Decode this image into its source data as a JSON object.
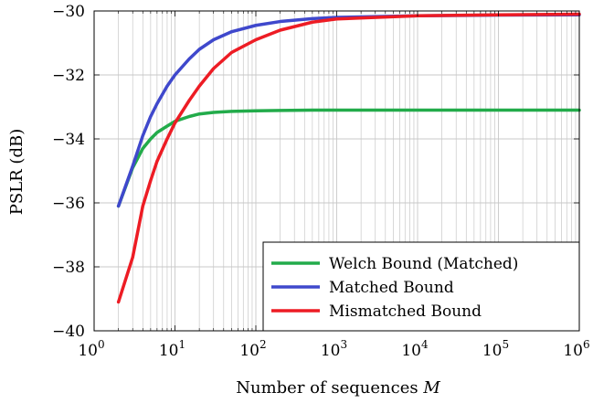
{
  "chart_data": {
    "type": "line",
    "title": "",
    "xlabel": "Number of sequences ",
    "xlabel_var": "M",
    "ylabel": "PSLR (dB)",
    "xscale": "log",
    "xlim": [
      1,
      1000000
    ],
    "ylim": [
      -40,
      -30
    ],
    "xticks": [
      {
        "value": 1,
        "base": "10",
        "exp": "0"
      },
      {
        "value": 10,
        "base": "10",
        "exp": "1"
      },
      {
        "value": 100,
        "base": "10",
        "exp": "2"
      },
      {
        "value": 1000,
        "base": "10",
        "exp": "3"
      },
      {
        "value": 10000,
        "base": "10",
        "exp": "4"
      },
      {
        "value": 100000,
        "base": "10",
        "exp": "5"
      },
      {
        "value": 1000000,
        "base": "10",
        "exp": "6"
      }
    ],
    "yticks": [
      {
        "value": -40,
        "label": "−40"
      },
      {
        "value": -38,
        "label": "−38"
      },
      {
        "value": -36,
        "label": "−36"
      },
      {
        "value": -34,
        "label": "−34"
      },
      {
        "value": -32,
        "label": "−32"
      },
      {
        "value": -30,
        "label": "−30"
      }
    ],
    "grid": true,
    "legend_position": "bottom-right",
    "series": [
      {
        "name": "Welch Bound (Matched)",
        "color": "#22ab4a",
        "x": [
          2,
          3,
          4,
          5,
          6,
          8,
          10,
          15,
          20,
          30,
          50,
          100,
          200,
          500,
          1000,
          10000,
          100000,
          1000000
        ],
        "y": [
          -36.1,
          -34.9,
          -34.3,
          -34.0,
          -33.8,
          -33.6,
          -33.45,
          -33.3,
          -33.22,
          -33.17,
          -33.14,
          -33.12,
          -33.11,
          -33.1,
          -33.1,
          -33.1,
          -33.1,
          -33.1
        ]
      },
      {
        "name": "Matched Bound",
        "color": "#3f48cc",
        "x": [
          2,
          3,
          4,
          5,
          6,
          8,
          10,
          15,
          20,
          30,
          50,
          100,
          200,
          500,
          1000,
          10000,
          100000,
          1000000
        ],
        "y": [
          -36.1,
          -34.85,
          -33.9,
          -33.3,
          -32.9,
          -32.35,
          -32.0,
          -31.5,
          -31.2,
          -30.9,
          -30.65,
          -30.45,
          -30.33,
          -30.24,
          -30.2,
          -30.15,
          -30.13,
          -30.12
        ]
      },
      {
        "name": "Mismatched Bound",
        "color": "#ed1c24",
        "x": [
          2,
          3,
          4,
          5,
          6,
          8,
          10,
          15,
          20,
          30,
          50,
          100,
          200,
          500,
          1000,
          10000,
          100000,
          1000000
        ],
        "y": [
          -39.1,
          -37.7,
          -36.1,
          -35.3,
          -34.7,
          -34.0,
          -33.5,
          -32.8,
          -32.35,
          -31.8,
          -31.3,
          -30.9,
          -30.6,
          -30.35,
          -30.25,
          -30.15,
          -30.12,
          -30.1
        ]
      }
    ]
  }
}
